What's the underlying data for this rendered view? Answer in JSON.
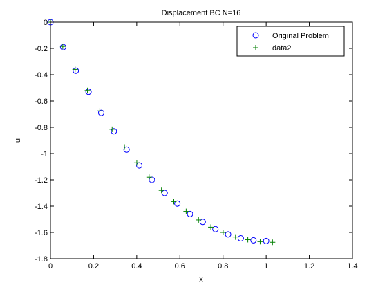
{
  "chart_data": {
    "type": "scatter",
    "title": "Displacement BC N=16",
    "xlabel": "x",
    "ylabel": "u",
    "xlim": [
      0,
      1.4
    ],
    "ylim": [
      -1.8,
      0
    ],
    "grid": false,
    "legend_position": "top-right",
    "x_ticks": [
      "0",
      "0.2",
      "0.4",
      "0.6",
      "0.8",
      "1",
      "1.2",
      "1.4"
    ],
    "y_ticks": [
      "0",
      "-0.2",
      "-0.4",
      "-0.6",
      "-0.8",
      "-1",
      "-1.2",
      "-1.4",
      "-1.6",
      "-1.8"
    ],
    "series": [
      {
        "name": "Original Problem",
        "marker": "circle",
        "color": "#0000ff",
        "x": [
          0,
          0.0588,
          0.1176,
          0.1765,
          0.2353,
          0.2941,
          0.3529,
          0.4118,
          0.4706,
          0.5294,
          0.5882,
          0.6471,
          0.7059,
          0.7647,
          0.8235,
          0.8824,
          0.9412,
          1.0
        ],
        "y": [
          0,
          -0.19,
          -0.37,
          -0.53,
          -0.69,
          -0.83,
          -0.97,
          -1.09,
          -1.2,
          -1.3,
          -1.38,
          -1.46,
          -1.52,
          -1.575,
          -1.615,
          -1.645,
          -1.66,
          -1.665
        ]
      },
      {
        "name": "data2",
        "marker": "plus",
        "color": "#007f00",
        "x": [
          0,
          0.0572,
          0.1144,
          0.1716,
          0.2288,
          0.2859,
          0.3431,
          0.4003,
          0.4575,
          0.5147,
          0.5719,
          0.6291,
          0.6863,
          0.7435,
          0.8006,
          0.8578,
          0.915,
          0.9722,
          1.0294
        ],
        "y": [
          0,
          -0.185,
          -0.36,
          -0.52,
          -0.675,
          -0.815,
          -0.95,
          -1.07,
          -1.18,
          -1.28,
          -1.365,
          -1.44,
          -1.505,
          -1.56,
          -1.6,
          -1.635,
          -1.655,
          -1.67,
          -1.675
        ]
      }
    ]
  }
}
